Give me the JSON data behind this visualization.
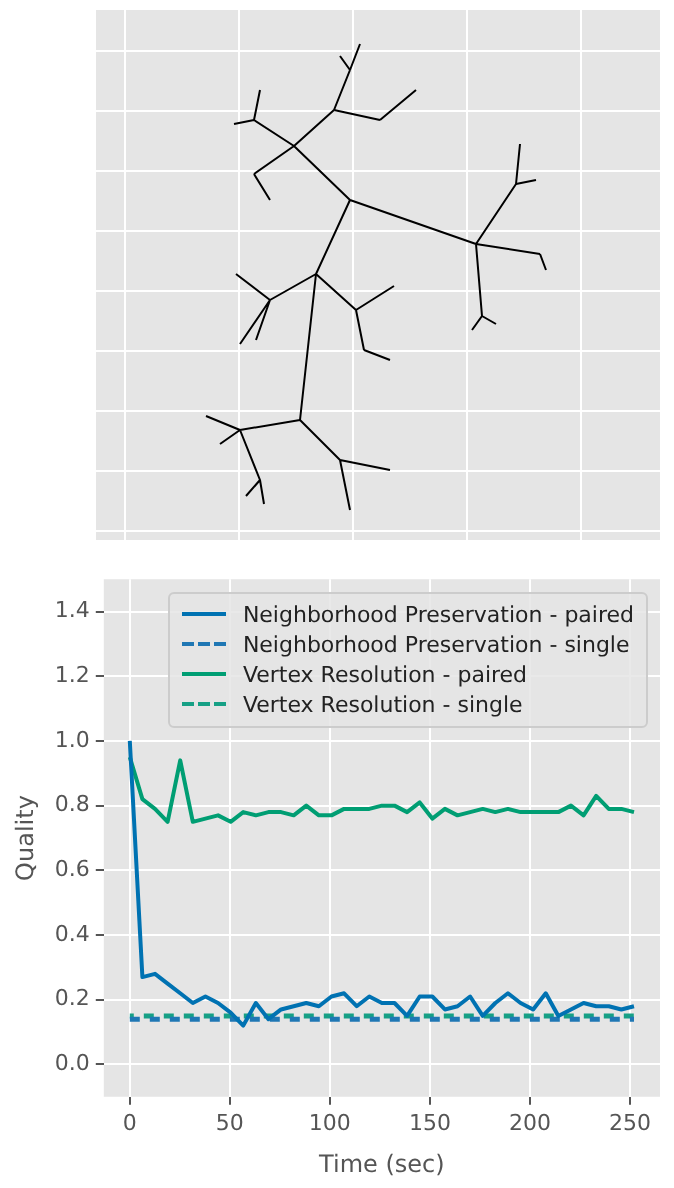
{
  "chart_data": {
    "type": "line",
    "xlabel": "Time (sec)",
    "ylabel": "Quality",
    "x": [
      0,
      6.3,
      12.6,
      18.9,
      25.2,
      31.5,
      37.8,
      44.1,
      50.4,
      56.7,
      63,
      69.3,
      75.6,
      81.9,
      88.2,
      94.5,
      100.8,
      107.1,
      113.4,
      119.7,
      126,
      132.3,
      138.6,
      144.9,
      151.2,
      157.5,
      163.8,
      170.1,
      176.4,
      182.7,
      189,
      195.3,
      201.6,
      207.9,
      214.2,
      220.5,
      226.8,
      233.1,
      239.4,
      245.7,
      252
    ],
    "series": [
      {
        "name": "Neighborhood Preservation - paired",
        "color": "#0072b2",
        "line_style": "solid",
        "values": [
          1.0,
          0.27,
          0.28,
          0.25,
          0.22,
          0.19,
          0.21,
          0.19,
          0.16,
          0.12,
          0.19,
          0.14,
          0.17,
          0.18,
          0.19,
          0.18,
          0.21,
          0.22,
          0.18,
          0.21,
          0.19,
          0.19,
          0.15,
          0.21,
          0.21,
          0.17,
          0.18,
          0.21,
          0.15,
          0.19,
          0.22,
          0.19,
          0.17,
          0.22,
          0.15,
          0.17,
          0.19,
          0.18,
          0.18,
          0.17,
          0.18
        ]
      },
      {
        "name": "Neighborhood Preservation - single",
        "color": "#1f77b4",
        "line_style": "dashed",
        "values": [
          0.14,
          0.14,
          0.14,
          0.14,
          0.14,
          0.14,
          0.14,
          0.14,
          0.14,
          0.14,
          0.14,
          0.14,
          0.14,
          0.14,
          0.14,
          0.14,
          0.14,
          0.14,
          0.14,
          0.14,
          0.14,
          0.14,
          0.14,
          0.14,
          0.14,
          0.14,
          0.14,
          0.14,
          0.14,
          0.14,
          0.14,
          0.14,
          0.14,
          0.14,
          0.14,
          0.14,
          0.14,
          0.14,
          0.14,
          0.14,
          0.14
        ]
      },
      {
        "name": "Vertex Resolution - paired",
        "color": "#009e73",
        "line_style": "solid",
        "values": [
          0.95,
          0.82,
          0.79,
          0.75,
          0.94,
          0.75,
          0.76,
          0.77,
          0.75,
          0.78,
          0.77,
          0.78,
          0.78,
          0.77,
          0.8,
          0.77,
          0.77,
          0.79,
          0.79,
          0.79,
          0.8,
          0.8,
          0.78,
          0.81,
          0.76,
          0.79,
          0.77,
          0.78,
          0.79,
          0.78,
          0.79,
          0.78,
          0.78,
          0.78,
          0.78,
          0.8,
          0.77,
          0.83,
          0.79,
          0.79,
          0.78
        ]
      },
      {
        "name": "Vertex Resolution - single",
        "color": "#16a085",
        "line_style": "dashed",
        "values": [
          0.15,
          0.15,
          0.15,
          0.15,
          0.15,
          0.15,
          0.15,
          0.15,
          0.15,
          0.15,
          0.15,
          0.15,
          0.15,
          0.15,
          0.15,
          0.15,
          0.15,
          0.15,
          0.15,
          0.15,
          0.15,
          0.15,
          0.15,
          0.15,
          0.15,
          0.15,
          0.15,
          0.15,
          0.15,
          0.15,
          0.15,
          0.15,
          0.15,
          0.15,
          0.15,
          0.15,
          0.15,
          0.15,
          0.15,
          0.15,
          0.15
        ]
      }
    ],
    "xlim": [
      -13,
      265
    ],
    "xticks": [
      0,
      50,
      100,
      150,
      200,
      250
    ],
    "ylim": [
      -0.1,
      1.5
    ],
    "yticks": [
      {
        "value": 0,
        "label": "0.0"
      },
      0.2,
      0.4,
      0.6,
      0.8,
      {
        "value": 1,
        "label": "1.0"
      },
      1.2,
      1.4
    ],
    "grid": true,
    "legend": "top right",
    "marker": "none"
  }
}
